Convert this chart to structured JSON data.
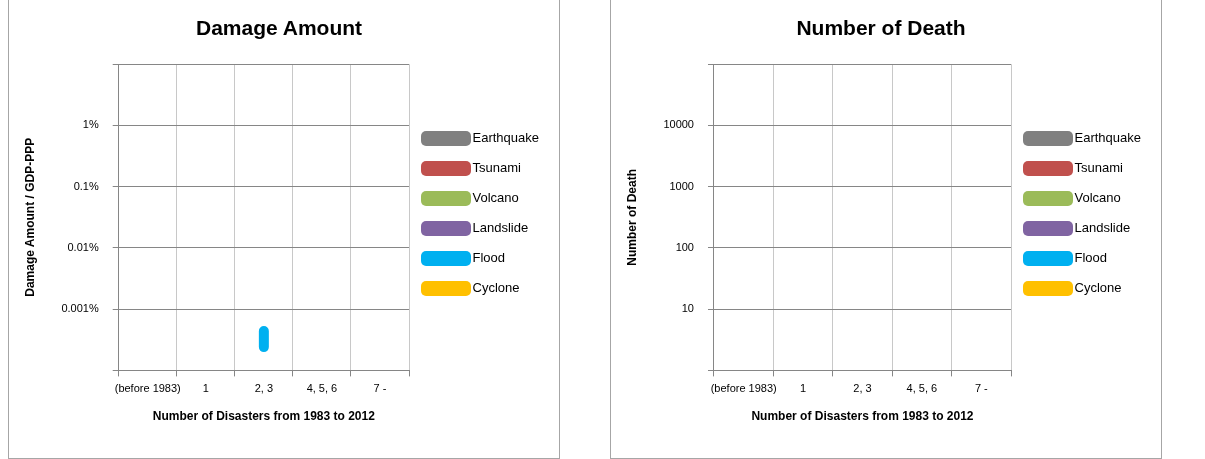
{
  "chart_data": [
    {
      "type": "line",
      "title": "Damage Amount",
      "xlabel": "Number of Disasters from 1983 to 2012",
      "ylabel": "Damage Amount / GDP-PPP",
      "categories": [
        "(before 1983)",
        "1",
        "2, 3",
        "4, 5, 6",
        "7 -"
      ],
      "log": "y",
      "ylim": [
        0.0001,
        10
      ],
      "yticks": [
        {
          "value": 0.0001,
          "label": null
        },
        {
          "value": 0.001,
          "label": "0.001%"
        },
        {
          "value": 0.01,
          "label": "0.01%"
        },
        {
          "value": 0.1,
          "label": "0.1%"
        },
        {
          "value": 1,
          "label": "1%"
        },
        {
          "value": 10,
          "label": null
        }
      ],
      "grid": true,
      "legend": "right",
      "marker": "none",
      "series": [
        {
          "name": "Earthquake",
          "color": "#808080",
          "values": [
            null,
            null,
            null,
            null,
            null
          ]
        },
        {
          "name": "Tsunami",
          "color": "#c0504d",
          "values": [
            null,
            null,
            null,
            null,
            null
          ]
        },
        {
          "name": "Volcano",
          "color": "#9bbb59",
          "values": [
            null,
            null,
            null,
            null,
            null
          ]
        },
        {
          "name": "Landslide",
          "color": "#8064a2",
          "values": [
            null,
            null,
            null,
            null,
            null
          ]
        },
        {
          "name": "Flood",
          "color": "#00b0f0",
          "x": [
            "2, 3",
            "2, 3"
          ],
          "values": [
            0.00044,
            0.00024
          ]
        },
        {
          "name": "Cyclone",
          "color": "#ffc000",
          "values": [
            null,
            null,
            null,
            null,
            null
          ]
        }
      ]
    },
    {
      "type": "line",
      "title": "Number of Death",
      "xlabel": "Number of Disasters from 1983 to 2012",
      "ylabel": "Number of Death",
      "categories": [
        "(before 1983)",
        "1",
        "2, 3",
        "4, 5, 6",
        "7 -"
      ],
      "log": "y",
      "ylim": [
        1,
        100000
      ],
      "yticks": [
        {
          "value": 1,
          "label": null
        },
        10,
        100,
        1000,
        10000,
        {
          "value": 100000,
          "label": null
        }
      ],
      "grid": true,
      "legend": "right",
      "marker": "none",
      "series": [
        {
          "name": "Earthquake",
          "color": "#808080",
          "values": [
            null,
            null,
            null,
            null,
            null
          ]
        },
        {
          "name": "Tsunami",
          "color": "#c0504d",
          "values": [
            null,
            null,
            null,
            null,
            null
          ]
        },
        {
          "name": "Volcano",
          "color": "#9bbb59",
          "values": [
            null,
            null,
            null,
            null,
            null
          ]
        },
        {
          "name": "Landslide",
          "color": "#8064a2",
          "values": [
            null,
            null,
            null,
            null,
            null
          ]
        },
        {
          "name": "Flood",
          "color": "#00b0f0",
          "values": [
            null,
            null,
            null,
            null,
            null
          ]
        },
        {
          "name": "Cyclone",
          "color": "#ffc000",
          "values": [
            null,
            null,
            null,
            null,
            null
          ]
        }
      ]
    }
  ]
}
